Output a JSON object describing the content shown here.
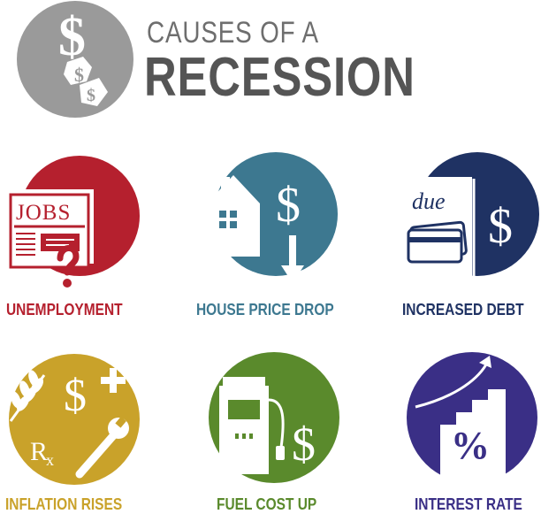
{
  "header": {
    "logo_icon": "dollar-coin-icon",
    "title_line1": "CAUSES OF A",
    "title_line2": "RECESSION"
  },
  "colors": {
    "unemployment": "#b5202e",
    "house_price_drop": "#3d7890",
    "increased_debt": "#1f3263",
    "inflation_rises": "#c9a22a",
    "fuel_cost_up": "#5a8a2c",
    "interest_rate": "#3a2f86",
    "title_gray": "#6e6e6e"
  },
  "causes": [
    {
      "label": "UNEMPLOYMENT",
      "icon": "jobs-newspaper-icon",
      "icon_text": "JOBS",
      "color": "#b5202e"
    },
    {
      "label": "HOUSE PRICE DROP",
      "icon": "house-dollar-down-icon",
      "color": "#3d7890"
    },
    {
      "label": "INCREASED DEBT",
      "icon": "due-bill-card-icon",
      "icon_text": "due",
      "color": "#1f3263"
    },
    {
      "label": "INFLATION RISES",
      "icon": "wheat-rx-wrench-icon",
      "icon_text": "Rx",
      "color": "#c9a22a"
    },
    {
      "label": "FUEL COST UP",
      "icon": "fuel-pump-dollar-icon",
      "color": "#5a8a2c"
    },
    {
      "label": "INTEREST RATE",
      "icon": "percent-stairs-icon",
      "icon_text": "%",
      "color": "#3a2f86"
    }
  ]
}
